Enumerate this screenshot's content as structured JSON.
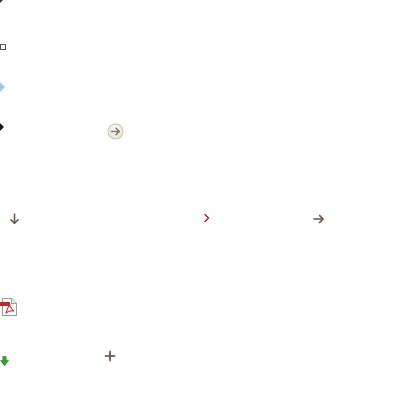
{
  "icons": [
    {
      "name": "corner-marker-icon",
      "color": "#333333"
    },
    {
      "name": "checkbox-square-icon",
      "color": "#555555"
    },
    {
      "name": "diamond-marker-icon",
      "color": "#9cc8f5"
    },
    {
      "name": "diamond-bullet-icon",
      "color": "#1a1a1a"
    },
    {
      "name": "arrow-right-circle-icon",
      "color": "#8b7a5e"
    },
    {
      "name": "arrow-down-icon",
      "color": "#6b5a48"
    },
    {
      "name": "chevron-right-small-icon",
      "color": "#b01c1c"
    },
    {
      "name": "arrow-right-icon",
      "color": "#6b5a48"
    },
    {
      "name": "pdf-file-icon",
      "color": "#c0282d"
    },
    {
      "name": "arrow-down-green-icon",
      "color": "#3aa02c"
    },
    {
      "name": "plus-icon",
      "color": "#6b5a48"
    }
  ]
}
